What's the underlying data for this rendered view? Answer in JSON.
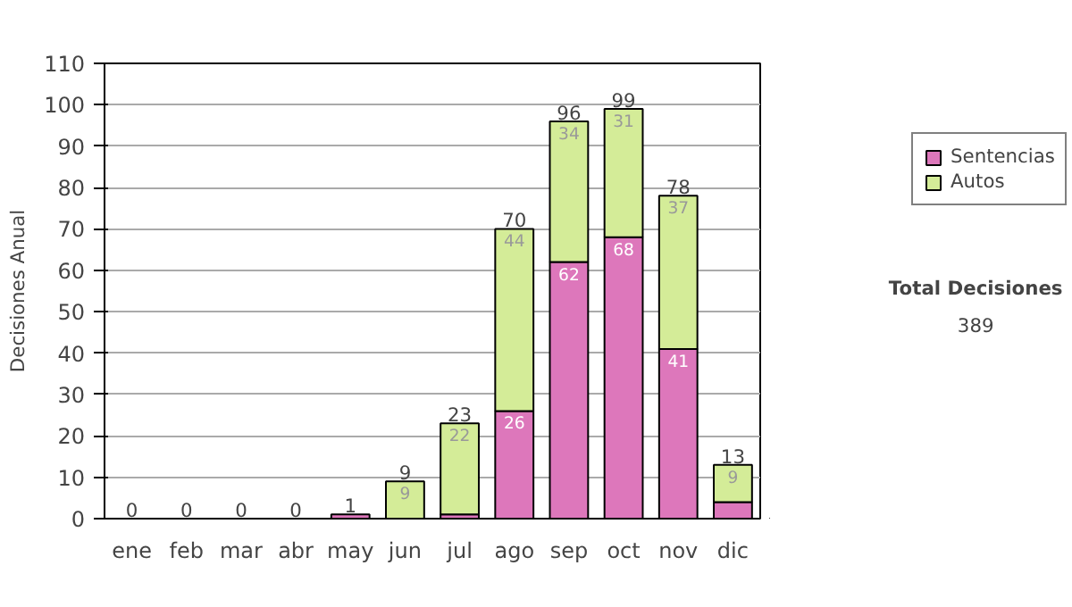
{
  "chart_data": {
    "type": "bar",
    "stacked": true,
    "ylabel": "Decisiones Anual",
    "categories": [
      "ene",
      "feb",
      "mar",
      "abr",
      "may",
      "jun",
      "jul",
      "ago",
      "sep",
      "oct",
      "nov",
      "dic"
    ],
    "series": [
      {
        "name": "Sentencias",
        "color": "#dd77bb",
        "values": [
          0,
          0,
          0,
          0,
          1,
          0,
          1,
          26,
          62,
          68,
          41,
          4
        ],
        "value_labels": [
          null,
          null,
          null,
          null,
          null,
          null,
          null,
          "26",
          "62",
          "68",
          "41",
          null
        ]
      },
      {
        "name": "Autos",
        "color": "#d4ec98",
        "values": [
          0,
          0,
          0,
          0,
          0,
          9,
          22,
          44,
          34,
          31,
          37,
          9
        ],
        "value_labels": [
          null,
          null,
          null,
          null,
          null,
          "9",
          "22",
          "44",
          "34",
          "31",
          "37",
          "9"
        ]
      }
    ],
    "totals": [
      "0",
      "0",
      "0",
      "0",
      "1",
      "9",
      "23",
      "70",
      "96",
      "99",
      "78",
      "13"
    ],
    "ylim": [
      0,
      110
    ],
    "yticks": [
      0,
      10,
      20,
      30,
      40,
      50,
      60,
      70,
      80,
      90,
      100,
      110
    ],
    "grid": "y",
    "legend": "right",
    "annotations": [
      "Total Decisiones",
      "389"
    ]
  }
}
